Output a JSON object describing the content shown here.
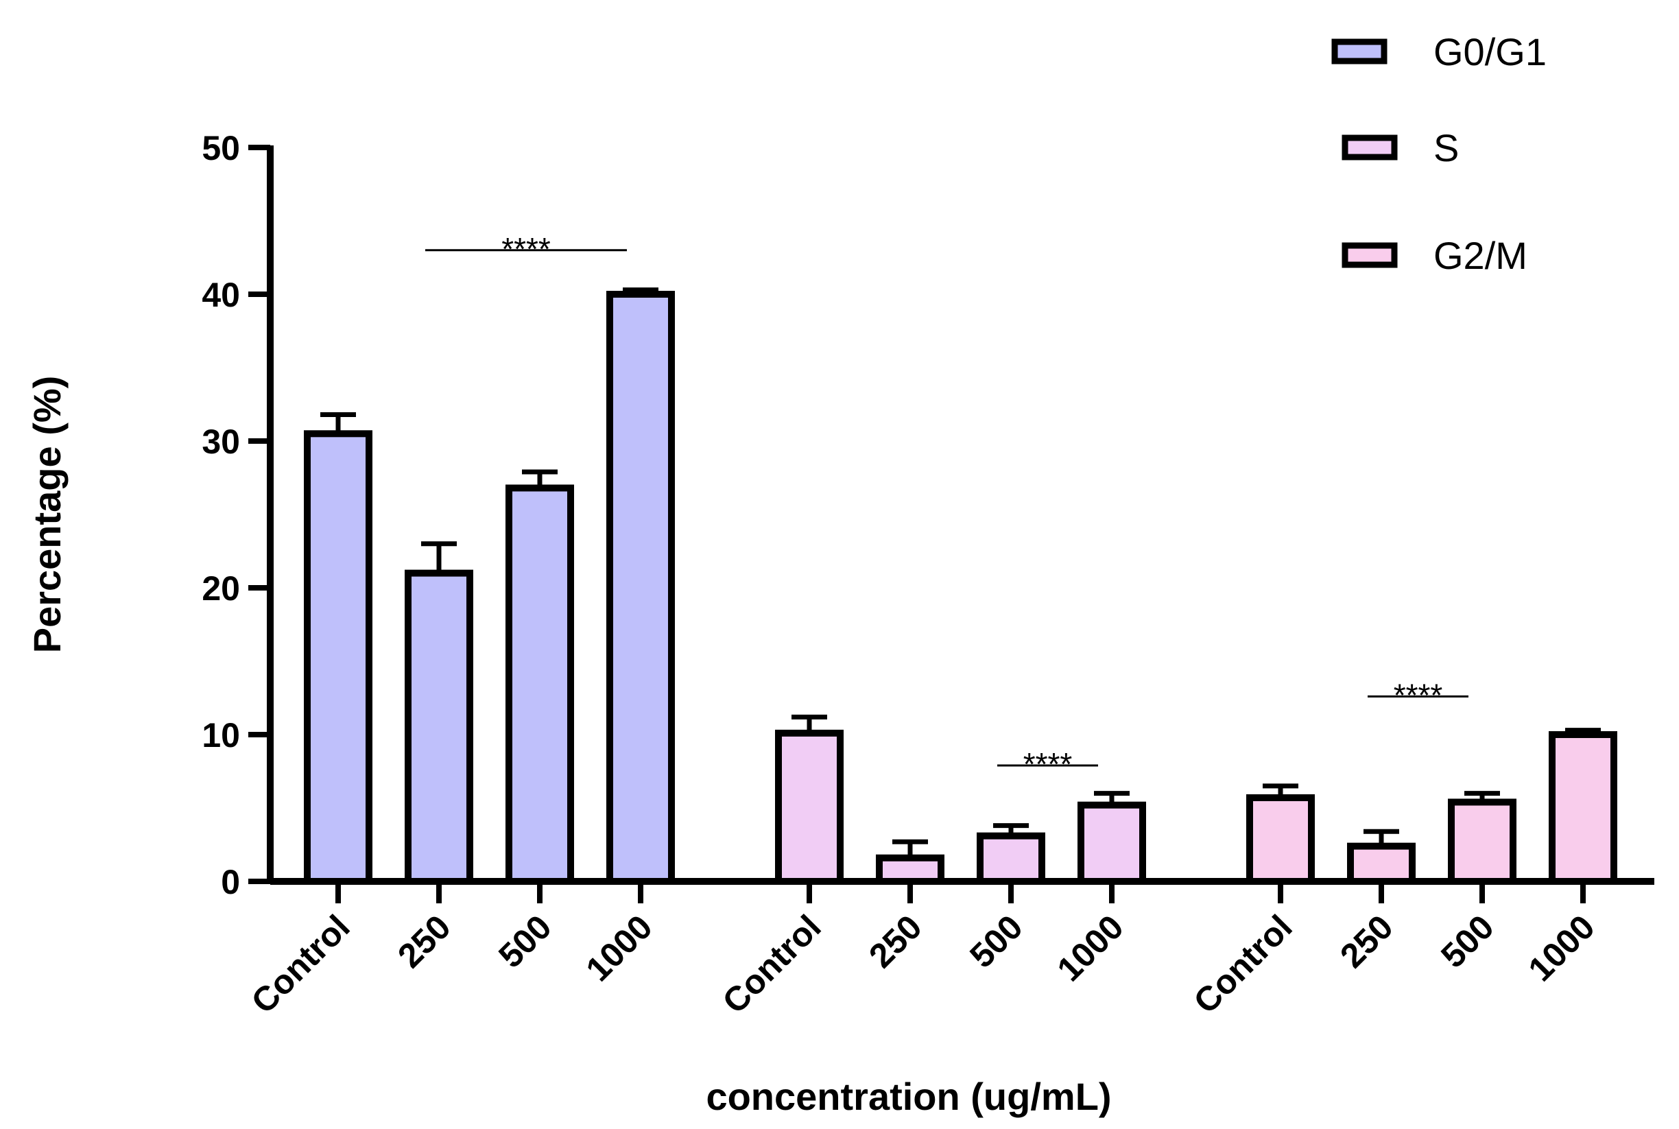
{
  "chart_data": {
    "type": "bar",
    "ylabel": "Percentage (%)",
    "xlabel": "concentration (ug/mL)",
    "ylim": [
      0,
      50
    ],
    "yticks": [
      0,
      10,
      20,
      30,
      40,
      50
    ],
    "grid": false,
    "legend_position": "top-right",
    "categories": [
      "Control",
      "250",
      "500",
      "1000"
    ],
    "series": [
      {
        "name": "G0/G1",
        "color": "#bfc0fb",
        "values": [
          30.5,
          21.0,
          26.8,
          40.0
        ],
        "errors": [
          1.3,
          2.0,
          1.1,
          0.3
        ]
      },
      {
        "name": "S",
        "color": "#f1cdf5",
        "values": [
          10.1,
          1.6,
          3.1,
          5.2
        ],
        "errors": [
          1.1,
          1.1,
          0.7,
          0.8
        ]
      },
      {
        "name": "G2/M",
        "color": "#f9cdec",
        "values": [
          5.7,
          2.4,
          5.4,
          10.0
        ],
        "errors": [
          0.8,
          1.0,
          0.6,
          0.3
        ]
      }
    ],
    "annotations": [
      {
        "series": 0,
        "from": 1,
        "to": 3,
        "y": 43.0,
        "label": "****"
      },
      {
        "series": 1,
        "from": 2,
        "to": 3,
        "y": 7.9,
        "label": "****"
      },
      {
        "series": 2,
        "from": 1,
        "to": 2,
        "y": 12.6,
        "label": "****"
      }
    ]
  }
}
